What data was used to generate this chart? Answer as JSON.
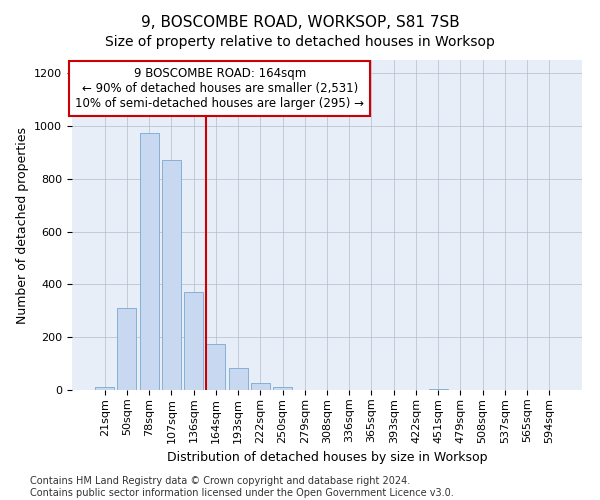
{
  "title": "9, BOSCOMBE ROAD, WORKSOP, S81 7SB",
  "subtitle": "Size of property relative to detached houses in Worksop",
  "xlabel": "Distribution of detached houses by size in Worksop",
  "ylabel": "Number of detached properties",
  "categories": [
    "21sqm",
    "50sqm",
    "78sqm",
    "107sqm",
    "136sqm",
    "164sqm",
    "193sqm",
    "222sqm",
    "250sqm",
    "279sqm",
    "308sqm",
    "336sqm",
    "365sqm",
    "393sqm",
    "422sqm",
    "451sqm",
    "479sqm",
    "508sqm",
    "537sqm",
    "565sqm",
    "594sqm"
  ],
  "values": [
    10,
    310,
    975,
    870,
    370,
    175,
    85,
    25,
    10,
    0,
    0,
    0,
    0,
    0,
    0,
    5,
    0,
    0,
    0,
    0,
    0
  ],
  "bar_color": "#c8d8f0",
  "bar_edge_color": "#7aa8d0",
  "vline_color": "#cc0000",
  "vline_index": 5,
  "annotation_text": "9 BOSCOMBE ROAD: 164sqm\n← 90% of detached houses are smaller (2,531)\n10% of semi-detached houses are larger (295) →",
  "annotation_box_color": "#ffffff",
  "annotation_box_edge": "#cc0000",
  "ylim": [
    0,
    1250
  ],
  "yticks": [
    0,
    200,
    400,
    600,
    800,
    1000,
    1200
  ],
  "footer": "Contains HM Land Registry data © Crown copyright and database right 2024.\nContains public sector information licensed under the Open Government Licence v3.0.",
  "bg_color": "#e8eef8",
  "title_fontsize": 11,
  "subtitle_fontsize": 10,
  "axis_fontsize": 9,
  "tick_fontsize": 8,
  "footer_fontsize": 7
}
